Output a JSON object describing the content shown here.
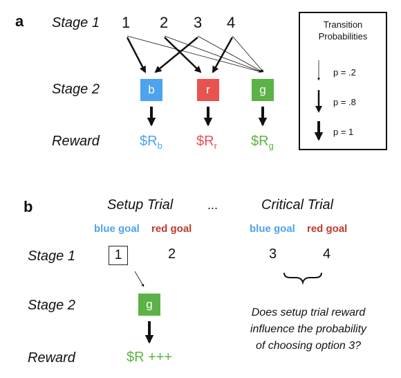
{
  "panel_a": {
    "label": "a",
    "stage1": "Stage 1",
    "stage2": "Stage 2",
    "reward": "Reward",
    "options": [
      "1",
      "2",
      "3",
      "4"
    ],
    "boxes": [
      {
        "label": "b",
        "color": "#4da3ee"
      },
      {
        "label": "r",
        "color": "#e8534f"
      },
      {
        "label": "g",
        "color": "#5cb246"
      }
    ],
    "rewards": [
      {
        "text": "$R",
        "sub": "b",
        "color": "#4da3ee"
      },
      {
        "text": "$R",
        "sub": "r",
        "color": "#e8534f"
      },
      {
        "text": "$R",
        "sub": "g",
        "color": "#5cb246"
      }
    ],
    "legend": {
      "title_line1": "Transition",
      "title_line2": "Probabilities",
      "p1": "p = .2",
      "p2": "p = .8",
      "p3": "p = 1"
    }
  },
  "panel_b": {
    "label": "b",
    "setup_trial": "Setup Trial",
    "ellipsis": "...",
    "critical_trial": "Critical Trial",
    "blue_goal": "blue goal",
    "red_goal": "red goal",
    "blue_goal_color": "#4da3ee",
    "red_goal_color": "#c0392b",
    "stage1": "Stage 1",
    "stage2": "Stage 2",
    "reward": "Reward",
    "setup_options": [
      "1",
      "2"
    ],
    "critical_options": [
      "3",
      "4"
    ],
    "box_label": "g",
    "box_color": "#5cb246",
    "reward_text": "$R +++",
    "reward_color": "#5cb246",
    "question_line1": "Does setup trial reward",
    "question_line2": "influence the probability",
    "question_line3": "of choosing option 3?"
  }
}
